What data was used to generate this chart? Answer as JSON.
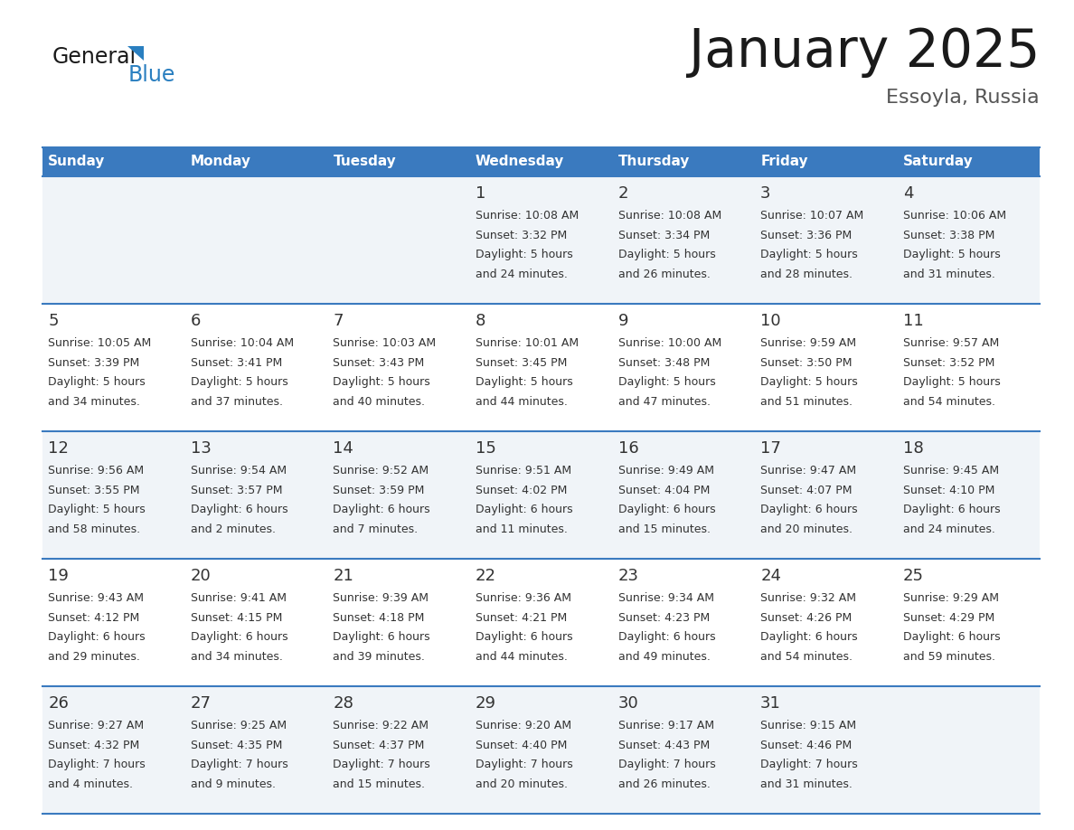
{
  "title": "January 2025",
  "subtitle": "Essoyla, Russia",
  "days_of_week": [
    "Sunday",
    "Monday",
    "Tuesday",
    "Wednesday",
    "Thursday",
    "Friday",
    "Saturday"
  ],
  "header_bg": "#3a7abf",
  "header_text_color": "#ffffff",
  "cell_bg_light": "#f0f4f8",
  "cell_bg_white": "#ffffff",
  "row_line_color": "#3a7abf",
  "text_color": "#333333",
  "calendar_data": [
    [
      {
        "day": null,
        "sunrise": null,
        "sunset": null,
        "daylight": null
      },
      {
        "day": null,
        "sunrise": null,
        "sunset": null,
        "daylight": null
      },
      {
        "day": null,
        "sunrise": null,
        "sunset": null,
        "daylight": null
      },
      {
        "day": 1,
        "sunrise": "10:08 AM",
        "sunset": "3:32 PM",
        "daylight": "5 hours\nand 24 minutes."
      },
      {
        "day": 2,
        "sunrise": "10:08 AM",
        "sunset": "3:34 PM",
        "daylight": "5 hours\nand 26 minutes."
      },
      {
        "day": 3,
        "sunrise": "10:07 AM",
        "sunset": "3:36 PM",
        "daylight": "5 hours\nand 28 minutes."
      },
      {
        "day": 4,
        "sunrise": "10:06 AM",
        "sunset": "3:38 PM",
        "daylight": "5 hours\nand 31 minutes."
      }
    ],
    [
      {
        "day": 5,
        "sunrise": "10:05 AM",
        "sunset": "3:39 PM",
        "daylight": "5 hours\nand 34 minutes."
      },
      {
        "day": 6,
        "sunrise": "10:04 AM",
        "sunset": "3:41 PM",
        "daylight": "5 hours\nand 37 minutes."
      },
      {
        "day": 7,
        "sunrise": "10:03 AM",
        "sunset": "3:43 PM",
        "daylight": "5 hours\nand 40 minutes."
      },
      {
        "day": 8,
        "sunrise": "10:01 AM",
        "sunset": "3:45 PM",
        "daylight": "5 hours\nand 44 minutes."
      },
      {
        "day": 9,
        "sunrise": "10:00 AM",
        "sunset": "3:48 PM",
        "daylight": "5 hours\nand 47 minutes."
      },
      {
        "day": 10,
        "sunrise": "9:59 AM",
        "sunset": "3:50 PM",
        "daylight": "5 hours\nand 51 minutes."
      },
      {
        "day": 11,
        "sunrise": "9:57 AM",
        "sunset": "3:52 PM",
        "daylight": "5 hours\nand 54 minutes."
      }
    ],
    [
      {
        "day": 12,
        "sunrise": "9:56 AM",
        "sunset": "3:55 PM",
        "daylight": "5 hours\nand 58 minutes."
      },
      {
        "day": 13,
        "sunrise": "9:54 AM",
        "sunset": "3:57 PM",
        "daylight": "6 hours\nand 2 minutes."
      },
      {
        "day": 14,
        "sunrise": "9:52 AM",
        "sunset": "3:59 PM",
        "daylight": "6 hours\nand 7 minutes."
      },
      {
        "day": 15,
        "sunrise": "9:51 AM",
        "sunset": "4:02 PM",
        "daylight": "6 hours\nand 11 minutes."
      },
      {
        "day": 16,
        "sunrise": "9:49 AM",
        "sunset": "4:04 PM",
        "daylight": "6 hours\nand 15 minutes."
      },
      {
        "day": 17,
        "sunrise": "9:47 AM",
        "sunset": "4:07 PM",
        "daylight": "6 hours\nand 20 minutes."
      },
      {
        "day": 18,
        "sunrise": "9:45 AM",
        "sunset": "4:10 PM",
        "daylight": "6 hours\nand 24 minutes."
      }
    ],
    [
      {
        "day": 19,
        "sunrise": "9:43 AM",
        "sunset": "4:12 PM",
        "daylight": "6 hours\nand 29 minutes."
      },
      {
        "day": 20,
        "sunrise": "9:41 AM",
        "sunset": "4:15 PM",
        "daylight": "6 hours\nand 34 minutes."
      },
      {
        "day": 21,
        "sunrise": "9:39 AM",
        "sunset": "4:18 PM",
        "daylight": "6 hours\nand 39 minutes."
      },
      {
        "day": 22,
        "sunrise": "9:36 AM",
        "sunset": "4:21 PM",
        "daylight": "6 hours\nand 44 minutes."
      },
      {
        "day": 23,
        "sunrise": "9:34 AM",
        "sunset": "4:23 PM",
        "daylight": "6 hours\nand 49 minutes."
      },
      {
        "day": 24,
        "sunrise": "9:32 AM",
        "sunset": "4:26 PM",
        "daylight": "6 hours\nand 54 minutes."
      },
      {
        "day": 25,
        "sunrise": "9:29 AM",
        "sunset": "4:29 PM",
        "daylight": "6 hours\nand 59 minutes."
      }
    ],
    [
      {
        "day": 26,
        "sunrise": "9:27 AM",
        "sunset": "4:32 PM",
        "daylight": "7 hours\nand 4 minutes."
      },
      {
        "day": 27,
        "sunrise": "9:25 AM",
        "sunset": "4:35 PM",
        "daylight": "7 hours\nand 9 minutes."
      },
      {
        "day": 28,
        "sunrise": "9:22 AM",
        "sunset": "4:37 PM",
        "daylight": "7 hours\nand 15 minutes."
      },
      {
        "day": 29,
        "sunrise": "9:20 AM",
        "sunset": "4:40 PM",
        "daylight": "7 hours\nand 20 minutes."
      },
      {
        "day": 30,
        "sunrise": "9:17 AM",
        "sunset": "4:43 PM",
        "daylight": "7 hours\nand 26 minutes."
      },
      {
        "day": 31,
        "sunrise": "9:15 AM",
        "sunset": "4:46 PM",
        "daylight": "7 hours\nand 31 minutes."
      },
      {
        "day": null,
        "sunrise": null,
        "sunset": null,
        "daylight": null
      }
    ]
  ],
  "blue_color": "#2a7fc0",
  "logo_general_color": "#1a1a1a",
  "title_fontsize": 42,
  "subtitle_fontsize": 16,
  "header_fontsize": 11,
  "day_num_fontsize": 13,
  "info_fontsize": 9
}
